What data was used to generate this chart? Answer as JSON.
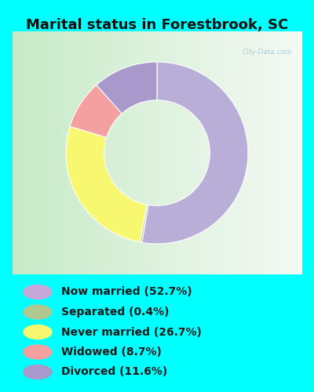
{
  "title": "Marital status in Forestbrook, SC",
  "title_fontsize": 13,
  "fig_bg": "#00FFFF",
  "chart_bg_left": "#c8e8c8",
  "chart_bg_right": "#f0f8f0",
  "legend_bg": "#00FFFF",
  "slices": [
    {
      "label": "Now married (52.7%)",
      "value": 52.7,
      "color": "#b8aed8"
    },
    {
      "label": "Separated (0.4%)",
      "value": 0.4,
      "color": "#c8d4a0"
    },
    {
      "label": "Never married (26.7%)",
      "value": 26.7,
      "color": "#f8f870"
    },
    {
      "label": "Widowed (8.7%)",
      "value": 8.7,
      "color": "#f4a0a0"
    },
    {
      "label": "Divorced (11.6%)",
      "value": 11.6,
      "color": "#a898cc"
    }
  ],
  "donut_width": 0.42,
  "legend_colors": [
    "#c8a8d8",
    "#b0c890",
    "#f8f870",
    "#f4a0a0",
    "#a898cc"
  ],
  "legend_labels": [
    "Now married (52.7%)",
    "Separated (0.4%)",
    "Never married (26.7%)",
    "Widowed (8.7%)",
    "Divorced (11.6%)"
  ],
  "watermark": "City-Data.com",
  "watermark_color": "#a0c8d8"
}
